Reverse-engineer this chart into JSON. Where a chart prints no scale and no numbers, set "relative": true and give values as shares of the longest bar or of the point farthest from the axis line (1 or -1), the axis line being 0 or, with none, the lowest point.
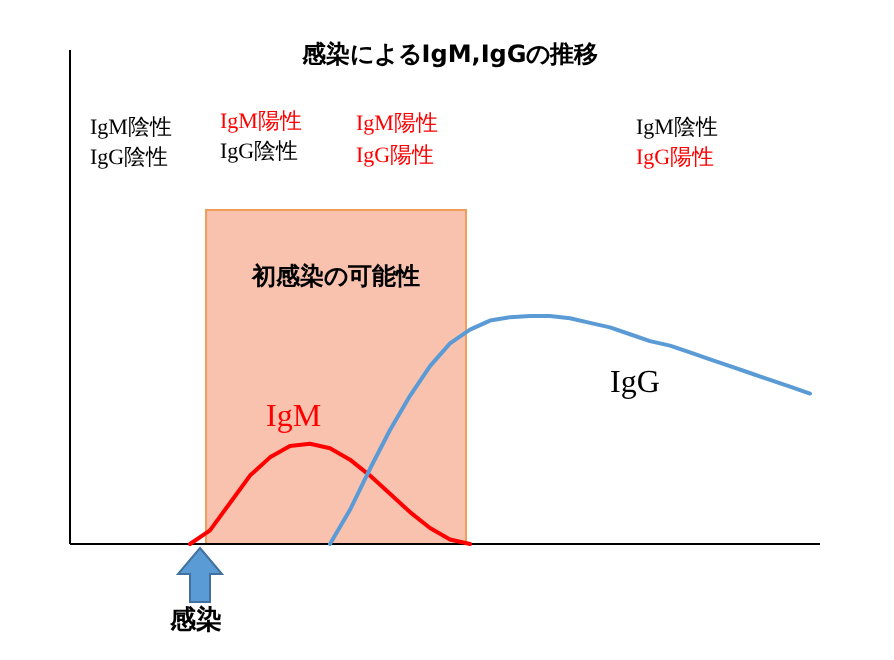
{
  "chart_data": {
    "type": "line",
    "relative": true,
    "title": "感染によるIgM,IgGの推移",
    "categories": [
      null,
      null,
      null,
      null,
      null,
      null,
      null,
      null,
      null,
      null,
      null,
      null,
      null,
      null,
      null,
      null,
      null,
      null,
      null,
      null,
      null,
      null,
      null,
      null,
      null,
      null,
      null,
      null,
      null,
      null,
      null,
      null,
      null,
      null,
      null,
      null,
      null,
      null
    ],
    "series": [
      {
        "name": "IgM",
        "color": "#ff0000",
        "values": [
          null,
          null,
          null,
          null,
          null,
          null,
          0,
          0.06,
          0.18,
          0.3,
          0.38,
          0.43,
          0.44,
          0.42,
          0.37,
          0.3,
          0.22,
          0.14,
          0.07,
          0.02,
          0,
          null,
          null,
          null,
          null,
          null,
          null,
          null,
          null,
          null,
          null,
          null,
          null,
          null,
          null,
          null,
          null,
          null
        ]
      },
      {
        "name": "IgG",
        "color": "#5b9bd5",
        "values": [
          null,
          null,
          null,
          null,
          null,
          null,
          null,
          null,
          null,
          null,
          null,
          null,
          null,
          0,
          0.15,
          0.33,
          0.5,
          0.65,
          0.78,
          0.88,
          0.94,
          0.98,
          0.995,
          1,
          1,
          0.99,
          0.97,
          0.95,
          0.92,
          0.89,
          0.87,
          0.84,
          0.81,
          0.78,
          0.75,
          0.72,
          0.69,
          0.66
        ]
      }
    ],
    "annotations": [
      "IgM陰性",
      "IgG陰性",
      "IgM陽性",
      "IgG陰性",
      "IgM陽性",
      "IgG陽性",
      "IgM陰性",
      "IgG陽性",
      "感染",
      "初感染の可能性"
    ],
    "marker": "none",
    "line_style": "solid"
  }
}
